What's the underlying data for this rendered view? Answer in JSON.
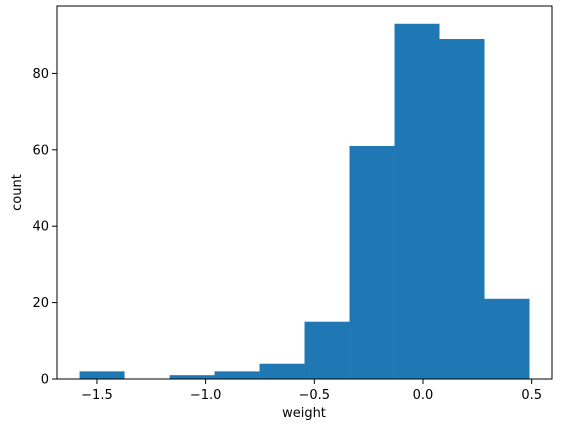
{
  "chart_data": {
    "type": "bar",
    "subtype": "histogram",
    "title": "",
    "xlabel": "weight",
    "ylabel": "count",
    "bin_edges": [
      -1.58,
      -1.373,
      -1.166,
      -0.959,
      -0.752,
      -0.545,
      -0.338,
      -0.131,
      0.076,
      0.283,
      0.49
    ],
    "values": [
      2,
      0,
      1,
      2,
      4,
      15,
      61,
      93,
      89,
      21
    ],
    "xlim": [
      -1.6838,
      0.5935
    ],
    "ylim": [
      0,
      97.65
    ],
    "xticks": [
      -1.5,
      -1.0,
      -0.5,
      0.0,
      0.5
    ],
    "xtick_labels": [
      "−1.5",
      "−1.0",
      "−0.5",
      "0.0",
      "0.5"
    ],
    "yticks": [
      0,
      20,
      40,
      60,
      80
    ],
    "ytick_labels": [
      "0",
      "20",
      "40",
      "60",
      "80"
    ],
    "bar_color": "#1f77b4",
    "grid": false,
    "legend": "none"
  }
}
